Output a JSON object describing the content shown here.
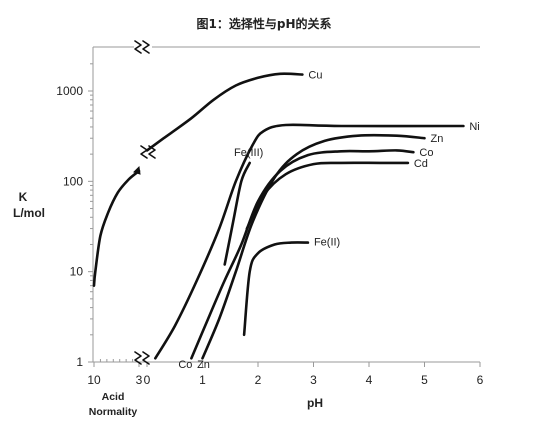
{
  "chart_data": {
    "type": "line",
    "title": "图1：选择性与pH的关系",
    "ylabel_line1": "K",
    "ylabel_line2": "L/mol",
    "yscale": "log",
    "ylim": [
      1,
      2000
    ],
    "y_ticks": [
      "1",
      "10",
      "100",
      "1000"
    ],
    "acid_axis": {
      "label_line1": "Acid",
      "label_line2": "Normality",
      "ticks": [
        "10",
        "3"
      ]
    },
    "ph_axis": {
      "label": "pH",
      "xlim": [
        0,
        6
      ],
      "ticks": [
        "0",
        "1",
        "2",
        "3",
        "4",
        "5",
        "6"
      ]
    },
    "acid_series": [
      {
        "name": "Cu",
        "points": [
          [
            10,
            7
          ],
          [
            9.8,
            10
          ],
          [
            9.0,
            25
          ],
          [
            7.8,
            45
          ],
          [
            6.3,
            75
          ],
          [
            4.6,
            105
          ],
          [
            3.0,
            130
          ]
        ]
      }
    ],
    "ph_series": [
      {
        "name": "Cu",
        "points": [
          [
            0,
            220
          ],
          [
            0.3,
            300
          ],
          [
            0.8,
            500
          ],
          [
            1.2,
            800
          ],
          [
            1.6,
            1150
          ],
          [
            2.0,
            1400
          ],
          [
            2.4,
            1550
          ],
          [
            2.8,
            1520
          ]
        ]
      },
      {
        "name": "Ni",
        "points": [
          [
            0.15,
            1.1
          ],
          [
            0.5,
            2.5
          ],
          [
            0.9,
            8
          ],
          [
            1.3,
            30
          ],
          [
            1.6,
            100
          ],
          [
            1.9,
            250
          ],
          [
            2.1,
            360
          ],
          [
            2.5,
            420
          ],
          [
            3.5,
            410
          ],
          [
            5.7,
            410
          ]
        ]
      },
      {
        "name": "Zn",
        "points": [
          [
            1.0,
            1.1
          ],
          [
            1.3,
            3
          ],
          [
            1.6,
            10
          ],
          [
            1.9,
            35
          ],
          [
            2.3,
            110
          ],
          [
            2.7,
            200
          ],
          [
            3.2,
            280
          ],
          [
            3.8,
            320
          ],
          [
            4.5,
            320
          ],
          [
            5.0,
            300
          ]
        ]
      },
      {
        "name": "Co",
        "points": [
          [
            0.8,
            1.1
          ],
          [
            1.1,
            3
          ],
          [
            1.4,
            8
          ],
          [
            1.7,
            20
          ],
          [
            2.0,
            60
          ],
          [
            2.4,
            130
          ],
          [
            2.9,
            195
          ],
          [
            3.5,
            215
          ],
          [
            4.0,
            215
          ],
          [
            4.5,
            220
          ],
          [
            4.8,
            210
          ]
        ]
      },
      {
        "name": "Cd",
        "points": [
          [
            1.8,
            30
          ],
          [
            2.1,
            70
          ],
          [
            2.5,
            120
          ],
          [
            3.0,
            155
          ],
          [
            3.5,
            160
          ],
          [
            4.2,
            160
          ],
          [
            4.7,
            160
          ]
        ]
      },
      {
        "name": "Fe(III)",
        "points": [
          [
            1.4,
            12
          ],
          [
            1.55,
            35
          ],
          [
            1.7,
            100
          ],
          [
            1.85,
            160
          ]
        ]
      },
      {
        "name": "Fe(II)",
        "points": [
          [
            1.75,
            2
          ],
          [
            1.85,
            10
          ],
          [
            2.0,
            16
          ],
          [
            2.3,
            20
          ],
          [
            2.6,
            21
          ],
          [
            2.9,
            21
          ]
        ]
      }
    ],
    "label_under": [
      "Co",
      "Zn"
    ],
    "grid": false,
    "legend": "inline labels at line ends"
  }
}
